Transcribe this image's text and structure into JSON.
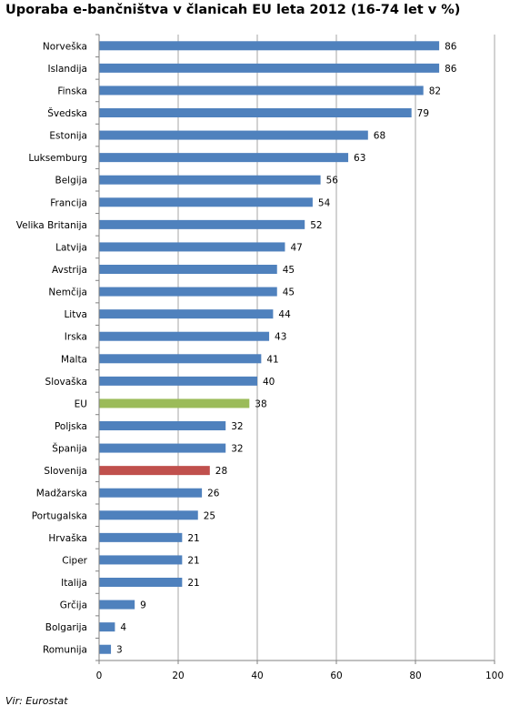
{
  "source": "Vir: Eurostat",
  "chart_data": {
    "type": "bar",
    "orientation": "horizontal",
    "title": "Uporaba e-bančništva v članicah EU leta 2012 (16-74 let v %)",
    "categories": [
      "Norveška",
      "Islandija",
      "Finska",
      "Švedska",
      "Estonija",
      "Luksemburg",
      "Belgija",
      "Francija",
      "Velika Britanija",
      "Latvija",
      "Avstrija",
      "Nemčija",
      "Litva",
      "Irska",
      "Malta",
      "Slovaška",
      "EU",
      "Poljska",
      "Španija",
      "Slovenija",
      "Madžarska",
      "Portugalska",
      "Hrvaška",
      "Ciper",
      "Italija",
      "Grčija",
      "Bolgarija",
      "Romunija"
    ],
    "values": [
      86,
      86,
      82,
      79,
      68,
      63,
      56,
      54,
      52,
      47,
      45,
      45,
      44,
      43,
      41,
      40,
      38,
      32,
      32,
      28,
      26,
      25,
      21,
      21,
      21,
      9,
      4,
      3
    ],
    "colors": {
      "default": "#4f81bd",
      "highlight": {
        "EU": "#9bbb59",
        "Slovenija": "#c0504d"
      }
    },
    "xlim": [
      0,
      100
    ],
    "xticks": [
      0,
      20,
      40,
      60,
      80,
      100
    ],
    "grid": true,
    "data_labels": true
  }
}
